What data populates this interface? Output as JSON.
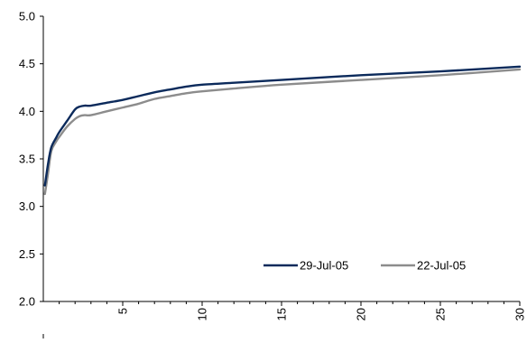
{
  "chart_data": {
    "type": "line",
    "title": "",
    "xlabel": "",
    "ylabel": "",
    "xlim": [
      0,
      30
    ],
    "ylim": [
      2.0,
      5.0
    ],
    "x_ticks": [
      5,
      10,
      15,
      20,
      25,
      30
    ],
    "y_ticks": [
      "2.0",
      "2.5",
      "3.0",
      "3.5",
      "4.0",
      "4.5",
      "5.0"
    ],
    "grid": false,
    "legend_position": "bottom-right",
    "series": [
      {
        "name": "29-Jul-05",
        "color": "#0b2a5b",
        "x": [
          0.1,
          0.3,
          0.5,
          0.8,
          1.0,
          1.5,
          2.0,
          2.3,
          2.6,
          3.0,
          4.0,
          5.0,
          6.0,
          7.0,
          8.0,
          9.0,
          10.0,
          12.0,
          15.0,
          20.0,
          25.0,
          30.0
        ],
        "y": [
          3.22,
          3.45,
          3.62,
          3.72,
          3.78,
          3.9,
          4.02,
          4.05,
          4.06,
          4.06,
          4.09,
          4.12,
          4.16,
          4.2,
          4.23,
          4.26,
          4.28,
          4.3,
          4.33,
          4.38,
          4.42,
          4.47
        ]
      },
      {
        "name": "22-Jul-05",
        "color": "#8c8c8c",
        "x": [
          0.1,
          0.3,
          0.5,
          0.8,
          1.0,
          1.5,
          2.0,
          2.3,
          2.6,
          3.0,
          4.0,
          5.0,
          6.0,
          7.0,
          8.0,
          9.0,
          10.0,
          12.0,
          15.0,
          20.0,
          25.0,
          30.0
        ],
        "y": [
          3.13,
          3.35,
          3.58,
          3.68,
          3.73,
          3.84,
          3.92,
          3.95,
          3.96,
          3.96,
          4.0,
          4.04,
          4.08,
          4.13,
          4.16,
          4.19,
          4.21,
          4.24,
          4.28,
          4.33,
          4.38,
          4.44
        ]
      }
    ]
  }
}
